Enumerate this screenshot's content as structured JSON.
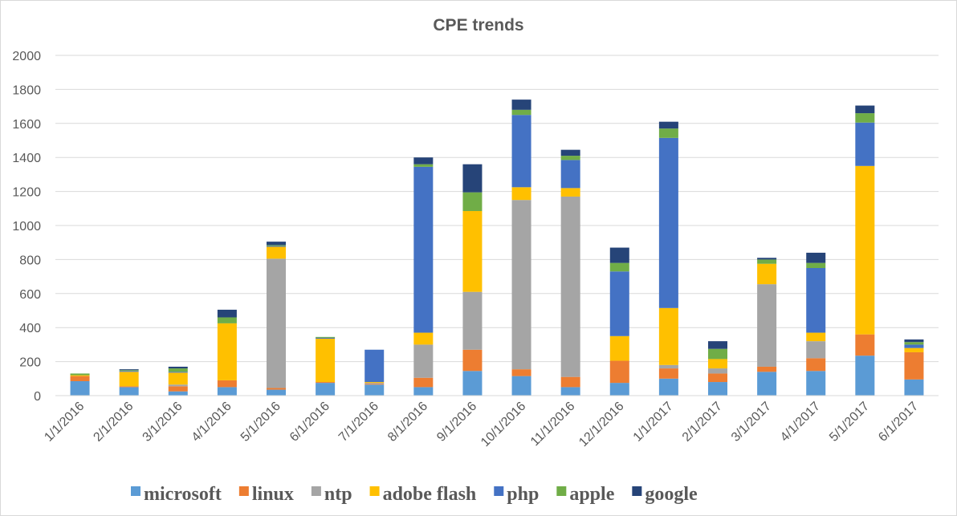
{
  "chart_data": {
    "type": "bar",
    "stacked": true,
    "title": "CPE trends",
    "xlabel": "",
    "ylabel": "",
    "ylim": [
      0,
      2000
    ],
    "yticks": [
      0,
      200,
      400,
      600,
      800,
      1000,
      1200,
      1400,
      1600,
      1800,
      2000
    ],
    "grid": true,
    "legend_position": "bottom",
    "categories": [
      "1/1/2016",
      "2/1/2016",
      "3/1/2016",
      "4/1/2016",
      "5/1/2016",
      "6/1/2016",
      "7/1/2016",
      "8/1/2016",
      "9/1/2016",
      "10/1/2016",
      "11/1/2016",
      "12/1/2016",
      "1/1/2017",
      "2/1/2017",
      "3/1/2017",
      "4/1/2017",
      "5/1/2017",
      "6/1/2017"
    ],
    "series": [
      {
        "name": "microsoft",
        "color": "#5b9bd5",
        "values": [
          85,
          50,
          25,
          50,
          35,
          75,
          65,
          50,
          145,
          115,
          50,
          75,
          100,
          80,
          140,
          145,
          235,
          95
        ]
      },
      {
        "name": "linux",
        "color": "#ed7d31",
        "values": [
          30,
          5,
          30,
          40,
          10,
          5,
          5,
          55,
          125,
          40,
          60,
          130,
          60,
          50,
          30,
          75,
          125,
          160
        ]
      },
      {
        "name": "ntp",
        "color": "#a5a5a5",
        "values": [
          0,
          0,
          10,
          0,
          760,
          0,
          5,
          195,
          340,
          995,
          1060,
          0,
          20,
          30,
          485,
          100,
          0,
          0
        ]
      },
      {
        "name": "adobe flash",
        "color": "#ffc000",
        "values": [
          5,
          85,
          70,
          335,
          70,
          255,
          5,
          70,
          475,
          75,
          50,
          145,
          335,
          55,
          120,
          50,
          990,
          25
        ]
      },
      {
        "name": "php",
        "color": "#4472c4",
        "values": [
          0,
          5,
          5,
          0,
          5,
          5,
          190,
          975,
          0,
          425,
          165,
          380,
          1000,
          0,
          0,
          380,
          255,
          20
        ]
      },
      {
        "name": "apple",
        "color": "#70ad47",
        "values": [
          10,
          5,
          20,
          35,
          5,
          5,
          0,
          15,
          110,
          30,
          25,
          50,
          55,
          60,
          25,
          30,
          55,
          15
        ]
      },
      {
        "name": "google",
        "color": "#264478",
        "values": [
          0,
          5,
          10,
          45,
          20,
          0,
          0,
          40,
          165,
          60,
          35,
          90,
          40,
          45,
          10,
          60,
          45,
          15
        ]
      }
    ]
  }
}
